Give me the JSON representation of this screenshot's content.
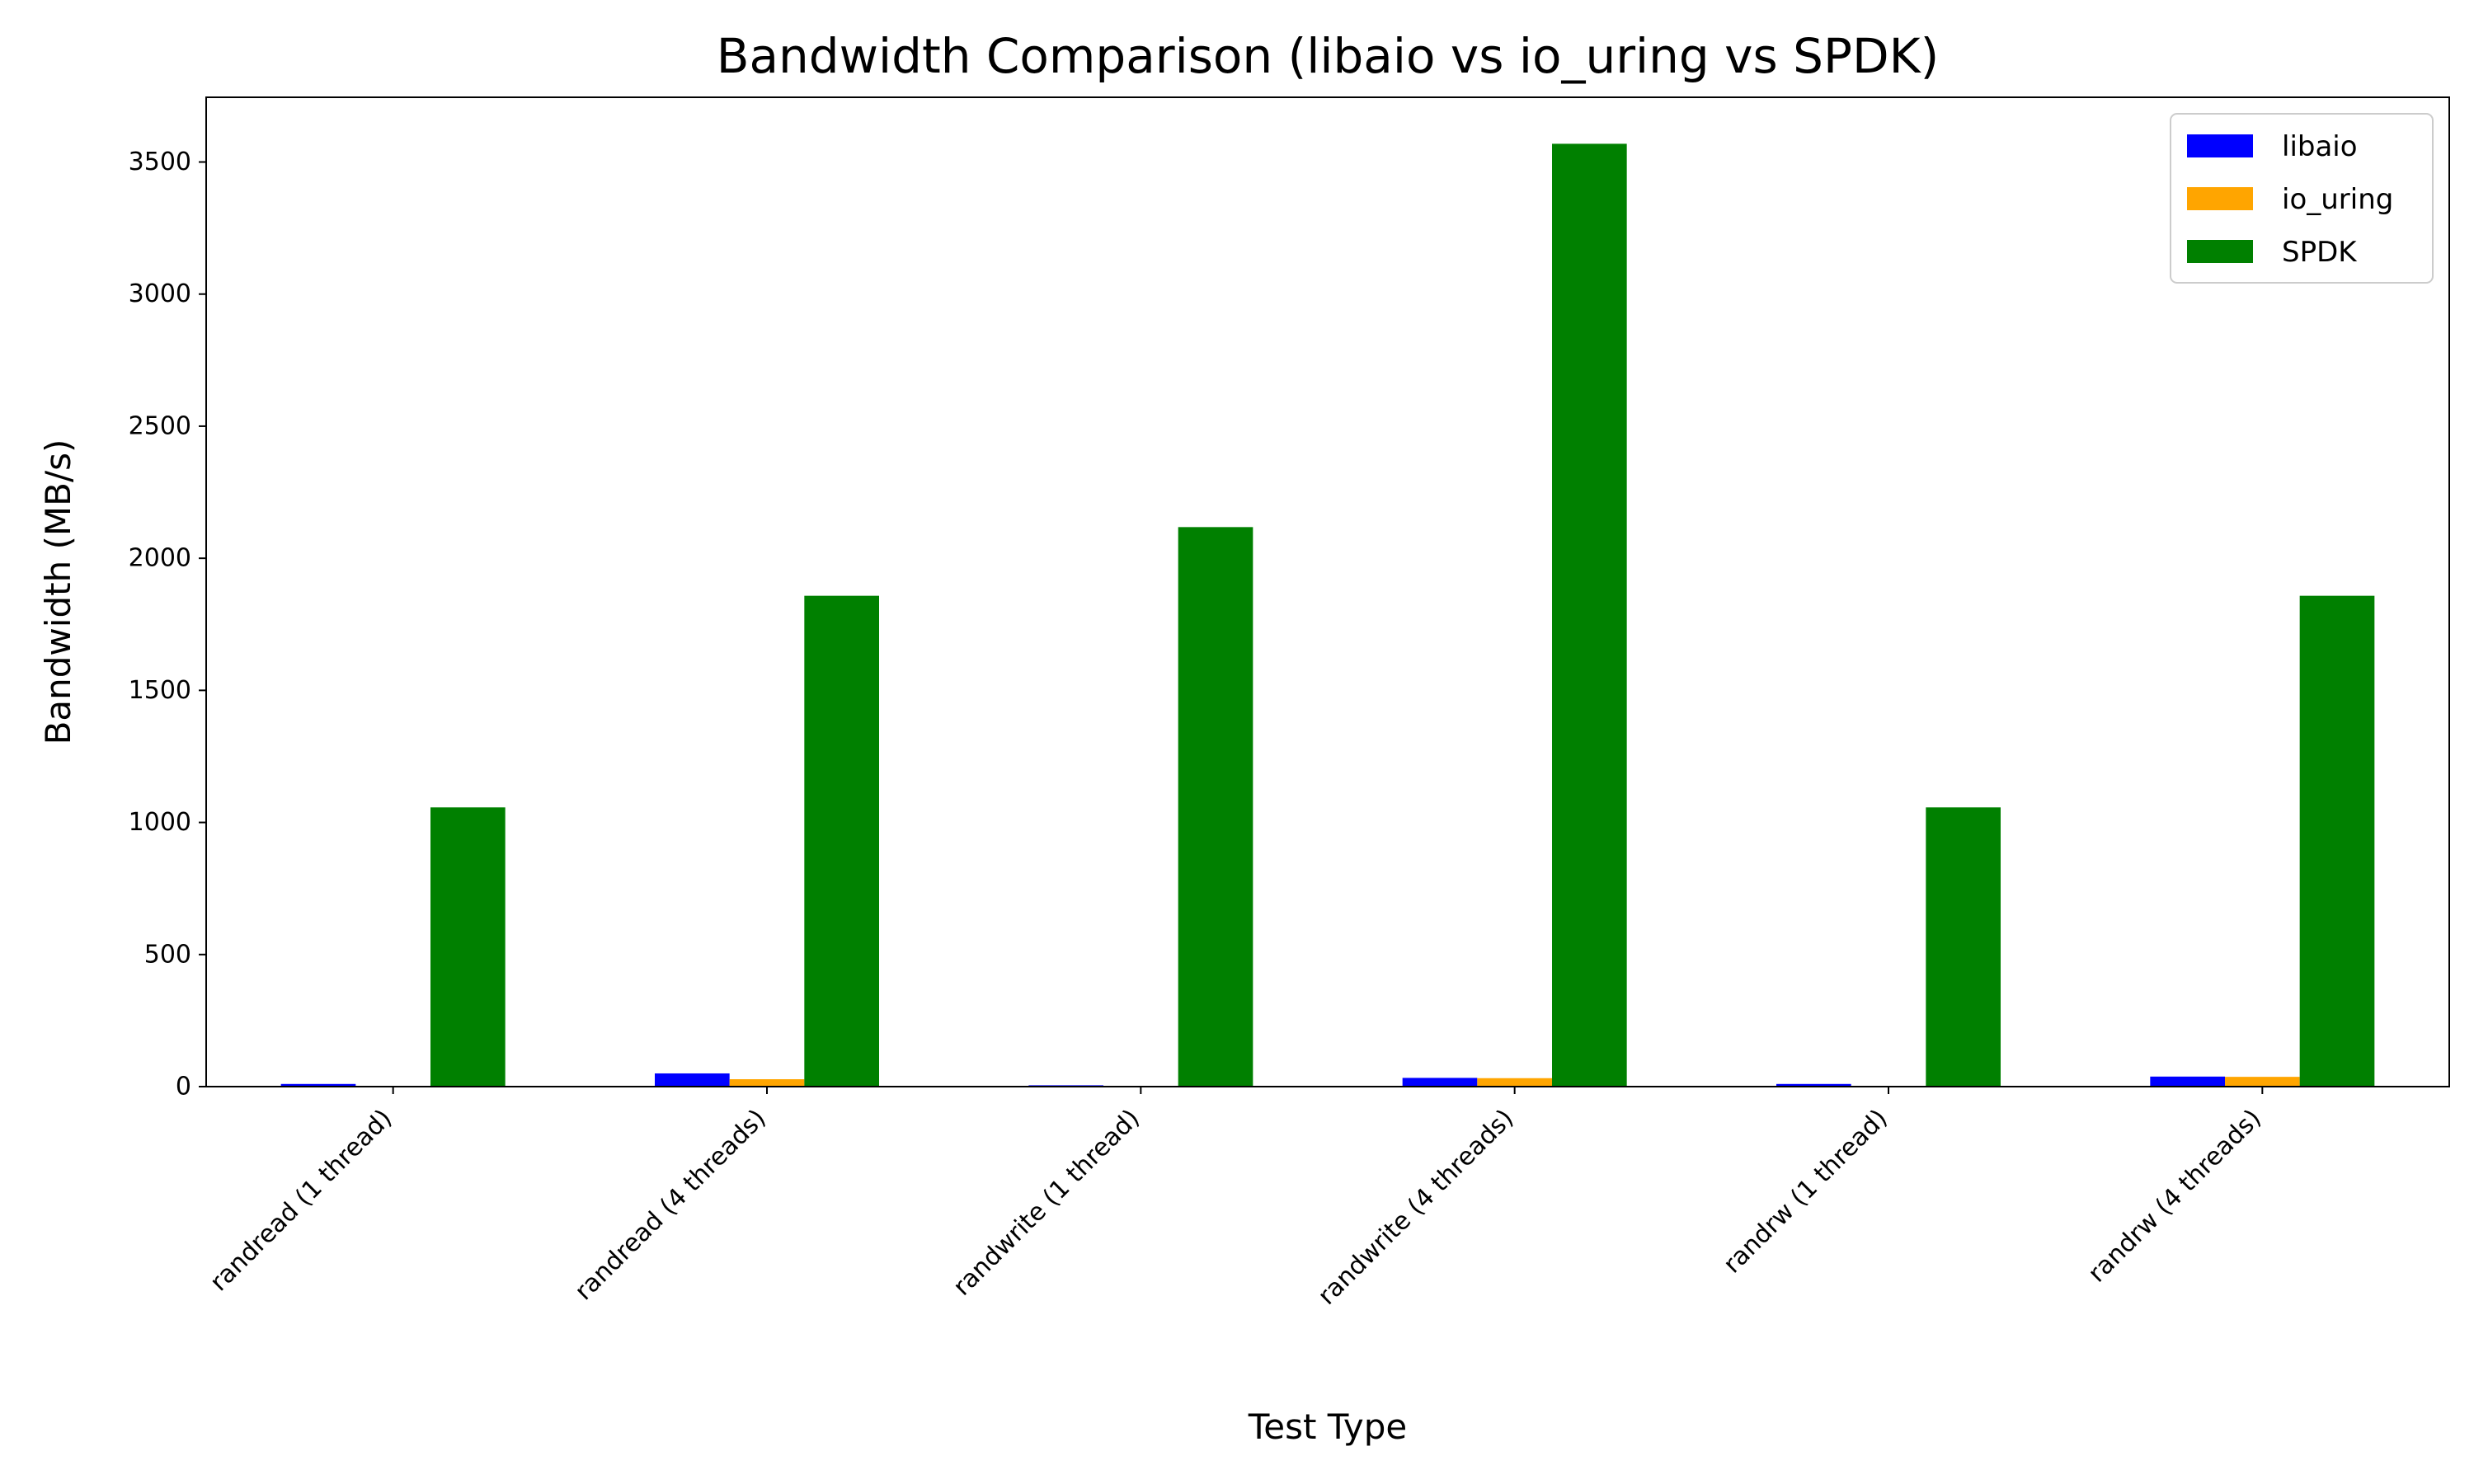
{
  "chart_data": {
    "type": "bar",
    "title": "Bandwidth Comparison (libaio vs io_uring vs SPDK)",
    "xlabel": "Test Type",
    "ylabel": "Bandwidth (MB/s)",
    "categories": [
      "randread (1 thread)",
      "randread (4 threads)",
      "randwrite (1 thread)",
      "randwrite (4 threads)",
      "randrw (1 thread)",
      "randrw (4 threads)"
    ],
    "series": [
      {
        "name": "libaio",
        "color": "#0000ff",
        "values": [
          10,
          50,
          5,
          33,
          10,
          38
        ]
      },
      {
        "name": "io_uring",
        "color": "#ffa500",
        "values": [
          3,
          28,
          3,
          32,
          3,
          37
        ]
      },
      {
        "name": "SPDK",
        "color": "#008000",
        "values": [
          1057,
          1858,
          2118,
          3569,
          1057,
          1858
        ]
      }
    ],
    "yticks": [
      0,
      500,
      1000,
      1500,
      2000,
      2500,
      3000,
      3500
    ],
    "ylim": [
      0,
      3745
    ],
    "grid": false,
    "legend_position": "top-right"
  }
}
